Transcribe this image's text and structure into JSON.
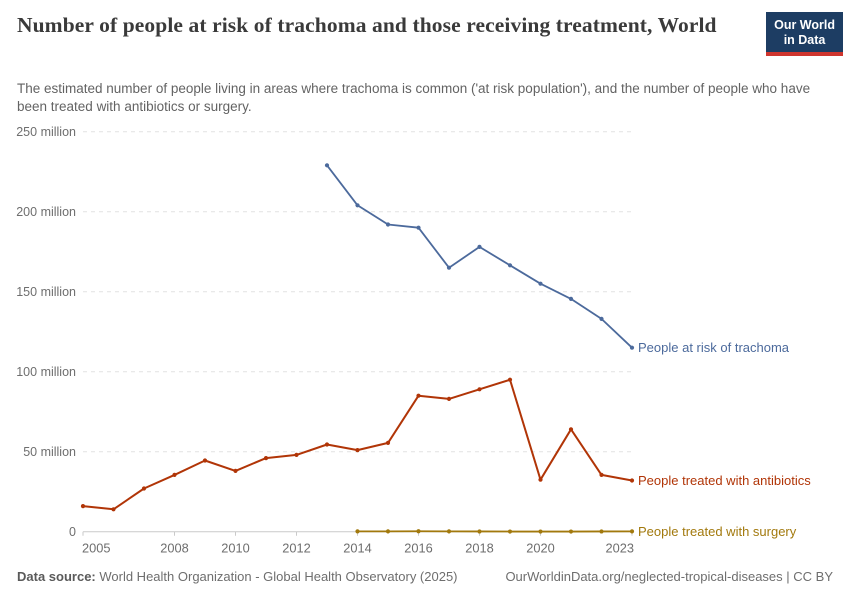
{
  "header": {
    "title": "Number of people at risk of trachoma and those receiving treatment, World",
    "subtitle": "The estimated number of people living in areas where trachoma is common ('at risk population'), and the number of people who have been treated with antibiotics or surgery.",
    "logo": {
      "line1": "Our World",
      "line2": "in Data",
      "bg_color": "#1d3d63",
      "accent_color": "#cf352e"
    }
  },
  "chart_data": {
    "type": "line",
    "unit": "million people",
    "xlim": [
      2005,
      2023
    ],
    "x_ticks": [
      2005,
      2008,
      2010,
      2012,
      2014,
      2016,
      2018,
      2020,
      2023
    ],
    "ylim_millions": [
      0,
      250
    ],
    "y_ticks_millions": [
      0,
      50,
      100,
      150,
      200,
      250
    ],
    "y_tick_labels": [
      "0",
      "50 million",
      "100 million",
      "150 million",
      "200 million",
      "250 million"
    ],
    "grid": "horizontal-dashed",
    "legend_position": "right-of-line-ends",
    "series": [
      {
        "name": "People at risk of trachoma",
        "color": "#4C6A9C",
        "years": [
          2013,
          2014,
          2015,
          2016,
          2017,
          2018,
          2019,
          2020,
          2021,
          2022,
          2023
        ],
        "values_millions": [
          229,
          204,
          192,
          190,
          165,
          178,
          166.5,
          155,
          145.5,
          133,
          115
        ]
      },
      {
        "name": "People treated with antibiotics",
        "color": "#B13507",
        "years": [
          2005,
          2006,
          2007,
          2008,
          2009,
          2010,
          2011,
          2012,
          2013,
          2014,
          2015,
          2016,
          2017,
          2018,
          2019,
          2020,
          2021,
          2022,
          2023
        ],
        "values_millions": [
          16,
          14,
          27,
          35.5,
          44.5,
          38,
          46,
          48,
          54.5,
          51,
          55.5,
          85,
          83,
          89,
          95,
          32.5,
          64,
          35.5,
          32
        ]
      },
      {
        "name": "People treated with surgery",
        "color": "#A2790D",
        "years": [
          2014,
          2015,
          2016,
          2017,
          2018,
          2019,
          2020,
          2021,
          2022,
          2023
        ],
        "values_millions": [
          0.2,
          0.2,
          0.3,
          0.2,
          0.15,
          0.1,
          0.1,
          0.1,
          0.15,
          0.2
        ]
      }
    ]
  },
  "footer": {
    "source_label": "Data source:",
    "source_text": " World Health Organization - Global Health Observatory (2025)",
    "right_text": "OurWorldinData.org/neglected-tropical-diseases | CC BY"
  }
}
